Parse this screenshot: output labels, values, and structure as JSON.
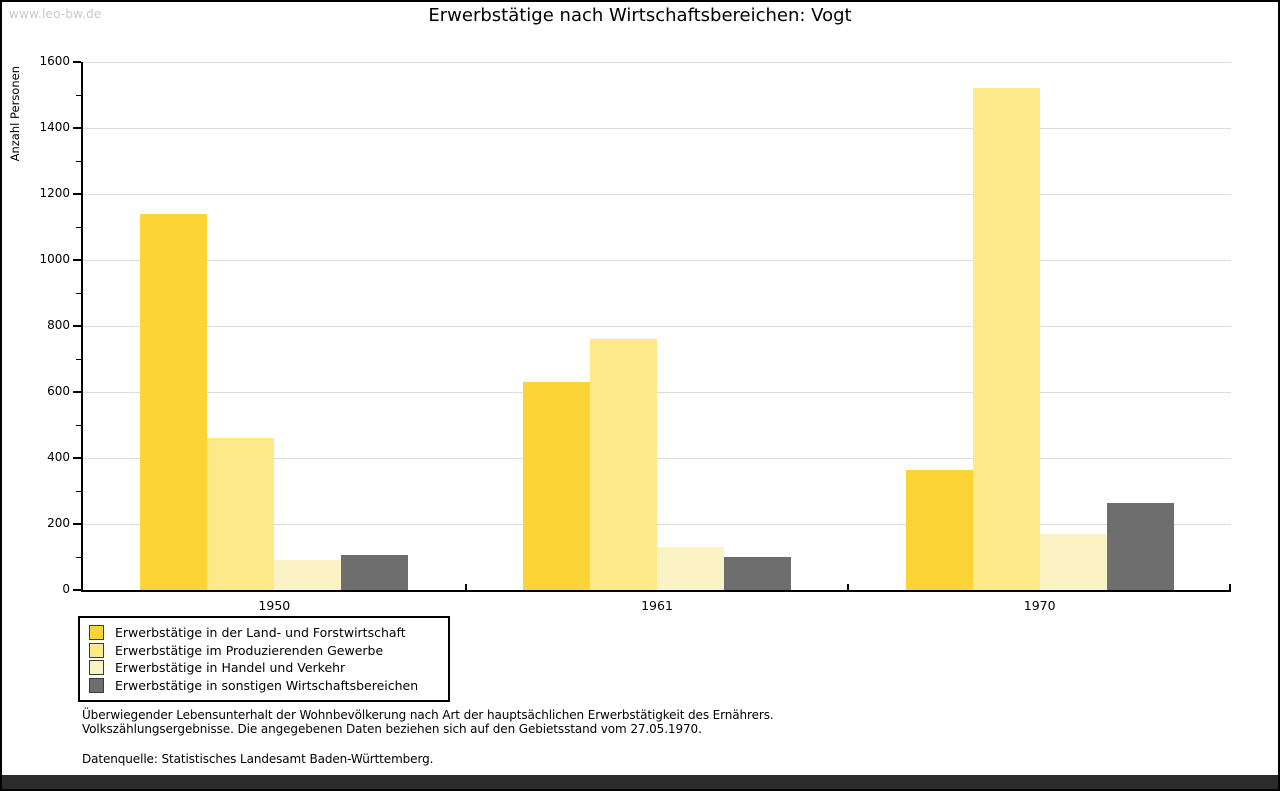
{
  "watermark": "www.leo-bw.de",
  "title": "Erwerbstätige nach Wirtschaftsbereichen: Vogt",
  "chart_data": {
    "type": "bar",
    "title": "Erwerbstätige nach Wirtschaftsbereichen: Vogt",
    "xlabel": "",
    "ylabel": "Anzahl Personen",
    "ylim": [
      0,
      1600
    ],
    "yticks": [
      0,
      200,
      400,
      600,
      800,
      1000,
      1200,
      1400,
      1600
    ],
    "ytick_minor_interval": 100,
    "grid": true,
    "legend_position": "bottom-left",
    "categories": [
      "1950",
      "1961",
      "1970"
    ],
    "series": [
      {
        "name": "Erwerbstätige in der Land- und Forstwirtschaft",
        "color": "#FDD435",
        "values": [
          1140,
          630,
          365
        ]
      },
      {
        "name": "Erwerbstätige im Produzierenden Gewerbe",
        "color": "#FDE88A",
        "values": [
          460,
          760,
          1520
        ]
      },
      {
        "name": "Erwerbstätige in Handel und Verkehr",
        "color": "#FBF3C4",
        "values": [
          90,
          130,
          170
        ]
      },
      {
        "name": "Erwerbstätige in sonstigen Wirtschaftsbereichen",
        "color": "#6E6E6E",
        "values": [
          105,
          100,
          265
        ]
      }
    ]
  },
  "footnote": {
    "line1": "Überwiegender Lebensunterhalt der Wohnbevölkerung nach Art der hauptsächlichen Erwerbstätigkeit des Ernährers.",
    "line2": "Volkszählungsergebnisse. Die angegebenen Daten beziehen sich auf den Gebietsstand vom 27.05.1970."
  },
  "source": "Datenquelle: Statistisches Landesamt Baden-Württemberg.",
  "colors": {
    "series1": "#FDD435",
    "series2": "#FDE88A",
    "series3": "#FBF3C4",
    "series4": "#6E6E6E",
    "gridline": "#DCDCDC",
    "watermark_text": "#C9C9C9",
    "bottom_bar": "#2B2B2B"
  }
}
